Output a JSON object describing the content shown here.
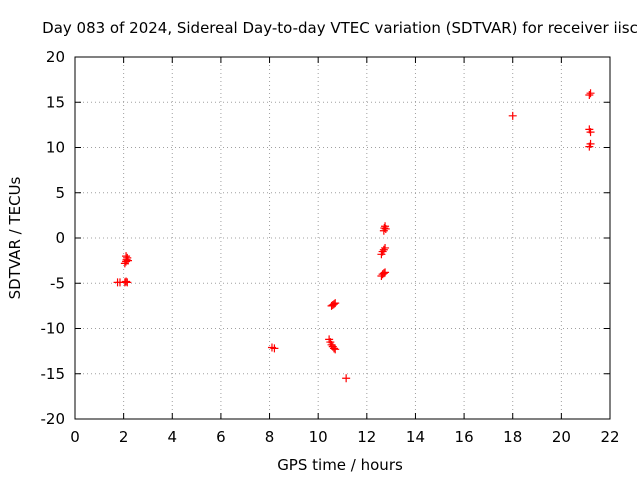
{
  "chart_data": {
    "type": "scatter",
    "title": "Day 083 of 2024, Sidereal Day-to-day VTEC variation (SDTVAR) for receiver iisc",
    "xlabel": "GPS time / hours",
    "ylabel": "SDTVAR / TECUs",
    "xlim": [
      0,
      22
    ],
    "ylim": [
      -20,
      20
    ],
    "xticks": [
      0,
      2,
      4,
      6,
      8,
      10,
      12,
      14,
      16,
      18,
      20,
      22
    ],
    "yticks": [
      -20,
      -15,
      -10,
      -5,
      0,
      5,
      10,
      15,
      20
    ],
    "grid": true,
    "marker": "+",
    "color": "#ff0000",
    "series": [
      {
        "name": "SDTVAR",
        "points": [
          [
            1.75,
            -4.9
          ],
          [
            1.85,
            -4.9
          ],
          [
            2.05,
            -4.9
          ],
          [
            2.1,
            -4.8
          ],
          [
            2.15,
            -4.9
          ],
          [
            2.05,
            -2.8
          ],
          [
            2.1,
            -2.6
          ],
          [
            2.12,
            -2.4
          ],
          [
            2.15,
            -2.2
          ],
          [
            2.18,
            -2.5
          ],
          [
            2.1,
            -2.0
          ],
          [
            8.1,
            -12.1
          ],
          [
            8.2,
            -12.2
          ],
          [
            10.45,
            -11.2
          ],
          [
            10.5,
            -11.5
          ],
          [
            10.55,
            -11.8
          ],
          [
            10.6,
            -12.0
          ],
          [
            10.65,
            -12.2
          ],
          [
            10.7,
            -12.3
          ],
          [
            10.55,
            -7.5
          ],
          [
            10.6,
            -7.4
          ],
          [
            10.65,
            -7.3
          ],
          [
            10.7,
            -7.2
          ],
          [
            11.15,
            -15.5
          ],
          [
            12.6,
            -4.2
          ],
          [
            12.65,
            -4.0
          ],
          [
            12.7,
            -3.9
          ],
          [
            12.75,
            -3.8
          ],
          [
            12.6,
            -1.8
          ],
          [
            12.65,
            -1.5
          ],
          [
            12.7,
            -1.3
          ],
          [
            12.75,
            -1.1
          ],
          [
            12.7,
            0.8
          ],
          [
            12.72,
            1.1
          ],
          [
            12.75,
            1.3
          ],
          [
            12.78,
            1.0
          ],
          [
            18.0,
            13.5
          ],
          [
            21.15,
            15.8
          ],
          [
            21.2,
            16.0
          ],
          [
            21.15,
            12.0
          ],
          [
            21.2,
            11.7
          ],
          [
            21.15,
            10.1
          ],
          [
            21.2,
            10.4
          ]
        ]
      }
    ]
  }
}
